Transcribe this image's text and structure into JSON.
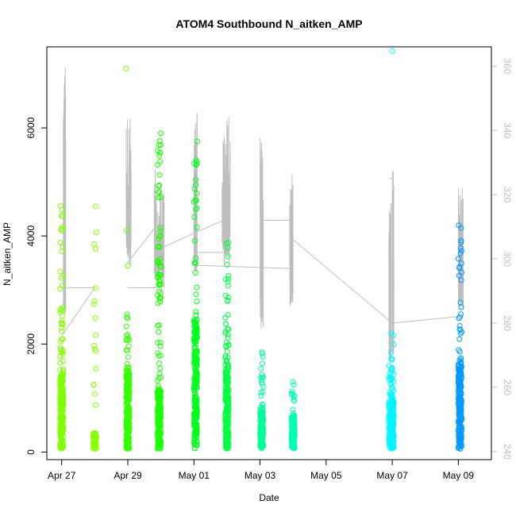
{
  "chart_data": {
    "type": "scatter",
    "title": "ATOM4 Southbound N_aitken_AMP",
    "xlabel": "Date",
    "ylabel": "N_aitken_AMP",
    "x_ticks": [
      {
        "label": "Apr 27",
        "day": 0
      },
      {
        "label": "Apr 29",
        "day": 2
      },
      {
        "label": "May 01",
        "day": 4
      },
      {
        "label": "May 03",
        "day": 6
      },
      {
        "label": "May 05",
        "day": 8
      },
      {
        "label": "May 07",
        "day": 10
      },
      {
        "label": "May 09",
        "day": 12
      }
    ],
    "xlim": [
      -0.45,
      13.0
    ],
    "ylim": [
      -140,
      7500
    ],
    "y_ticks": [
      0,
      2000,
      4000,
      6000
    ],
    "right_axis": {
      "color": "#bebebe",
      "ylim": [
        237.5,
        366
      ],
      "ticks": [
        240,
        260,
        280,
        300,
        320,
        340,
        360
      ]
    },
    "scatter_groups": [
      {
        "day": 0.0,
        "max": 4560,
        "base": 1400,
        "density": 1.0,
        "color": "#80ff00"
      },
      {
        "day": 1.0,
        "max": 4550,
        "base": 300,
        "density": 0.25,
        "color": "#88ff00"
      },
      {
        "day": 2.0,
        "max": 2550,
        "base": 1400,
        "density": 0.9,
        "color": "#33ff00"
      },
      {
        "day": 2.95,
        "max": 5900,
        "base": 1100,
        "density": 1.0,
        "color": "#1aff00"
      },
      {
        "day": 4.05,
        "max": 5750,
        "base": 2400,
        "density": 1.0,
        "color": "#00ff1a"
      },
      {
        "day": 5.0,
        "max": 3880,
        "base": 1500,
        "density": 0.9,
        "color": "#00ff40"
      },
      {
        "day": 6.05,
        "max": 1850,
        "base": 700,
        "density": 0.6,
        "color": "#00ff99"
      },
      {
        "day": 7.0,
        "max": 1300,
        "base": 600,
        "density": 0.5,
        "color": "#00ffb3"
      },
      {
        "day": 9.95,
        "max": 1730,
        "base": 800,
        "density": 0.6,
        "color": "#00ffff"
      },
      {
        "day": 10.0,
        "max": 2200,
        "base": 900,
        "density": 0.5,
        "color": "#00f5ff"
      },
      {
        "day": 12.05,
        "max": 4200,
        "base": 1600,
        "density": 0.9,
        "color": "#0099ff"
      }
    ],
    "outliers": [
      {
        "day": 1.95,
        "value": 7100,
        "color": "#80ff00"
      },
      {
        "day": 1.97,
        "value": 4100,
        "color": "#66ff00"
      },
      {
        "day": 2.0,
        "value": 3450,
        "color": "#66ff00"
      },
      {
        "day": 0.98,
        "value": 3850,
        "color": "#80ff00"
      },
      {
        "day": 10.0,
        "value": 7420,
        "color": "#00ffff"
      }
    ],
    "line_series": {
      "name": "right-axis trace",
      "color": "#bebebe",
      "bursts": [
        {
          "start": 0.05,
          "end": 0.12,
          "min": 280,
          "max": 361
        },
        {
          "start": 1.95,
          "end": 2.1,
          "min": 298,
          "max": 345
        },
        {
          "start": 2.8,
          "end": 3.1,
          "min": 290,
          "max": 328
        },
        {
          "start": 4.0,
          "end": 4.1,
          "min": 295,
          "max": 346
        },
        {
          "start": 4.85,
          "end": 5.1,
          "min": 298,
          "max": 345
        },
        {
          "start": 6.0,
          "end": 6.1,
          "min": 278,
          "max": 338
        },
        {
          "start": 6.9,
          "end": 7.0,
          "min": 285,
          "max": 327
        },
        {
          "start": 10.0,
          "end": 10.05,
          "min": 270,
          "max": 328
        },
        {
          "start": 9.9,
          "end": 9.97,
          "min": 268,
          "max": 320
        },
        {
          "start": 12.0,
          "end": 12.15,
          "min": 283,
          "max": 323
        }
      ],
      "connectors": [
        {
          "d0": 0.0,
          "v0": 276,
          "d1": 1.0,
          "v1": 291
        },
        {
          "d0": 1.0,
          "v0": 291,
          "d1": 0.1,
          "v1": 291
        },
        {
          "d0": 2.0,
          "v0": 299,
          "d1": 2.85,
          "v1": 310
        },
        {
          "d0": 2.0,
          "v0": 291,
          "d1": 2.9,
          "v1": 291
        },
        {
          "d0": 2.95,
          "v0": 303,
          "d1": 4.0,
          "v1": 308
        },
        {
          "d0": 4.0,
          "v0": 308,
          "d1": 4.9,
          "v1": 312
        },
        {
          "d0": 4.1,
          "v0": 302,
          "d1": 4.9,
          "v1": 302
        },
        {
          "d0": 4.1,
          "v0": 298,
          "d1": 6.9,
          "v1": 297
        },
        {
          "d0": 6.0,
          "v0": 312,
          "d1": 6.9,
          "v1": 312
        },
        {
          "d0": 7.0,
          "v0": 306,
          "d1": 10.0,
          "v1": 280
        },
        {
          "d0": 10.0,
          "v0": 280,
          "d1": 12.0,
          "v1": 282
        },
        {
          "d0": 9.9,
          "v0": 325,
          "d1": 10.05,
          "v1": 325
        }
      ]
    }
  }
}
